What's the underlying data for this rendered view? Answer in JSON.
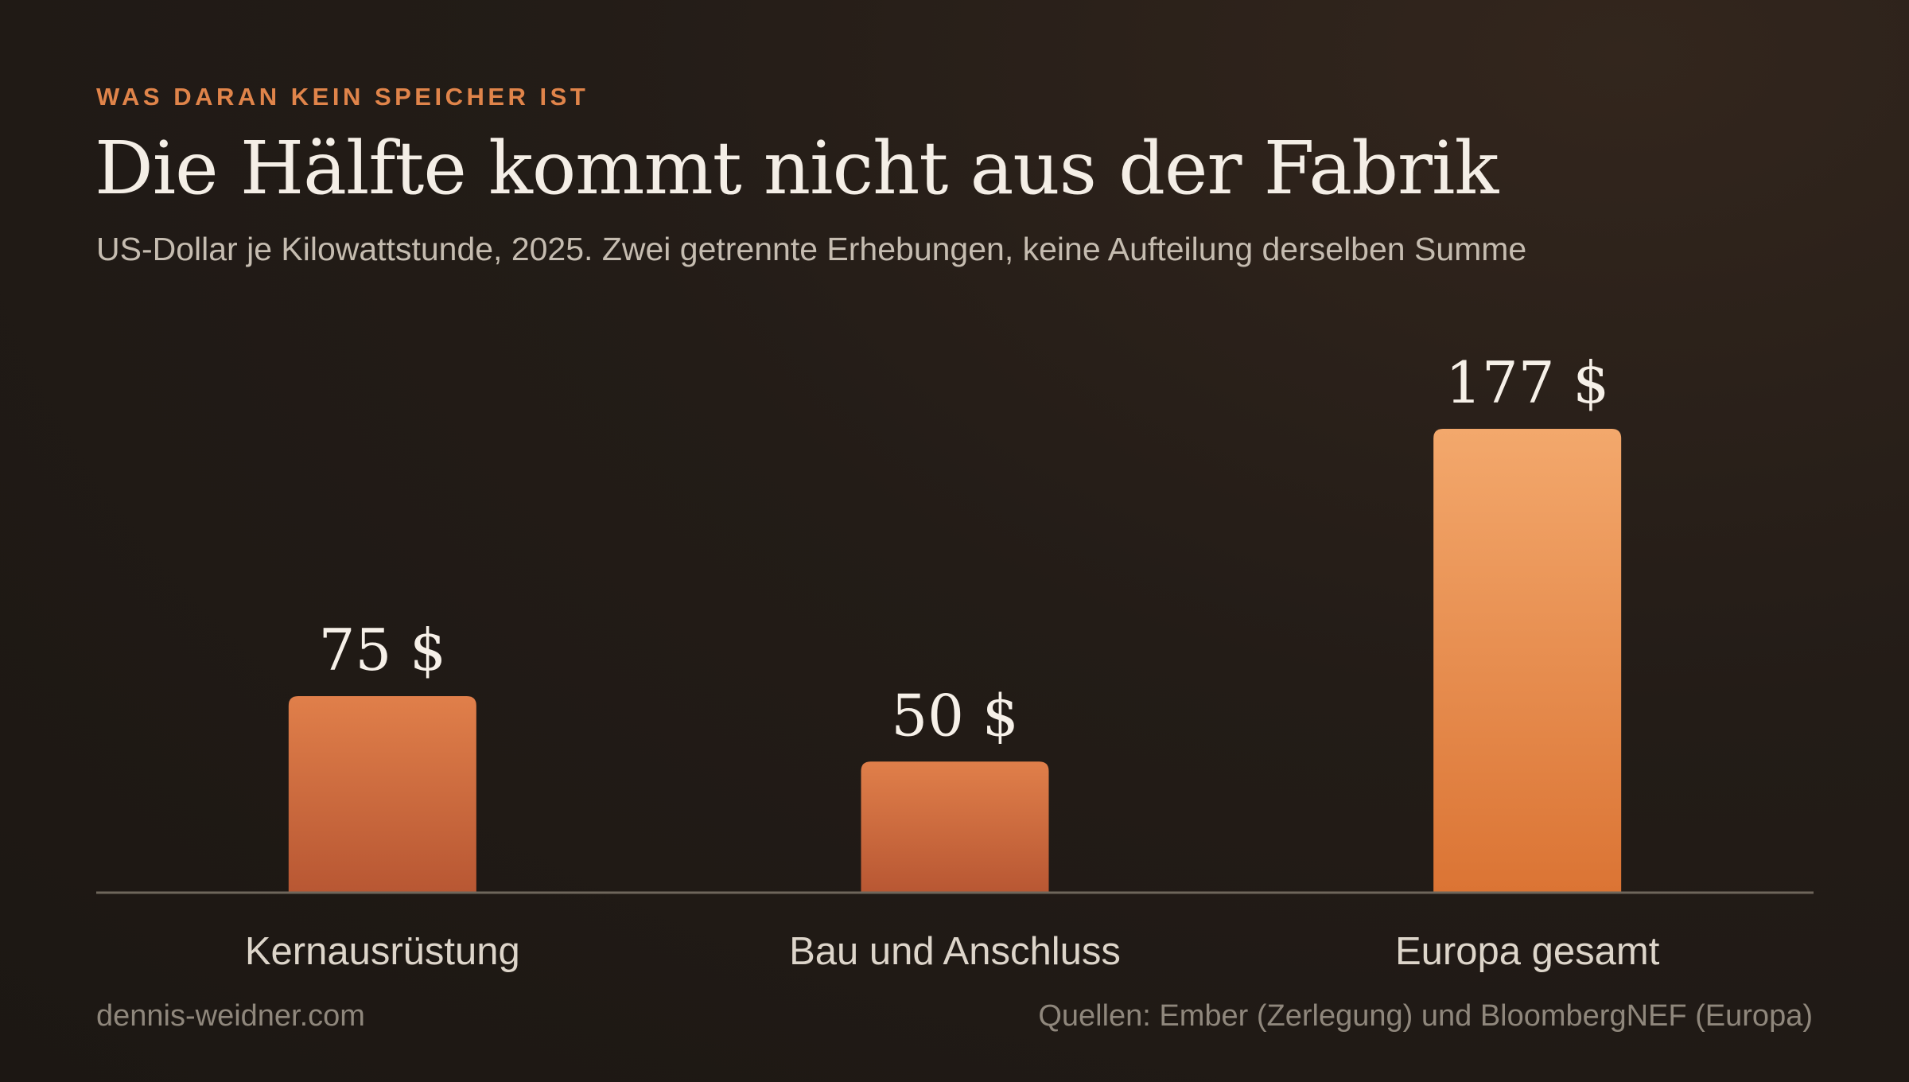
{
  "header": {
    "eyebrow": "WAS DARAN KEIN SPEICHER IST",
    "title": "Die Hälfte kommt nicht aus der Fabrik",
    "subtitle": "US-Dollar je Kilowattstunde, 2025. Zwei getrennte Erhebungen, keine Aufteilung derselben Summe"
  },
  "chart_data": {
    "type": "bar",
    "categories": [
      "Kernausrüstung",
      "Bau und Anschluss",
      "Europa gesamt"
    ],
    "values": [
      75,
      50,
      177
    ],
    "value_labels": [
      "75 $",
      "50 $",
      "177 $"
    ],
    "unit": "$",
    "ylim": [
      0,
      177
    ],
    "grid": false,
    "legend": "none",
    "colors": {
      "component_bar_top": "#e07f4a",
      "component_bar_bottom": "#b85733",
      "total_bar_top": "#f3a86c",
      "total_bar_bottom": "#db7434",
      "baseline": "#6e665b",
      "value_label": "#f6f0e8",
      "category_label": "#ddd5ca"
    }
  },
  "footer": {
    "site": "dennis-weidner.com",
    "sources": "Quellen: Ember (Zerlegung) und BloombergNEF (Europa)"
  }
}
